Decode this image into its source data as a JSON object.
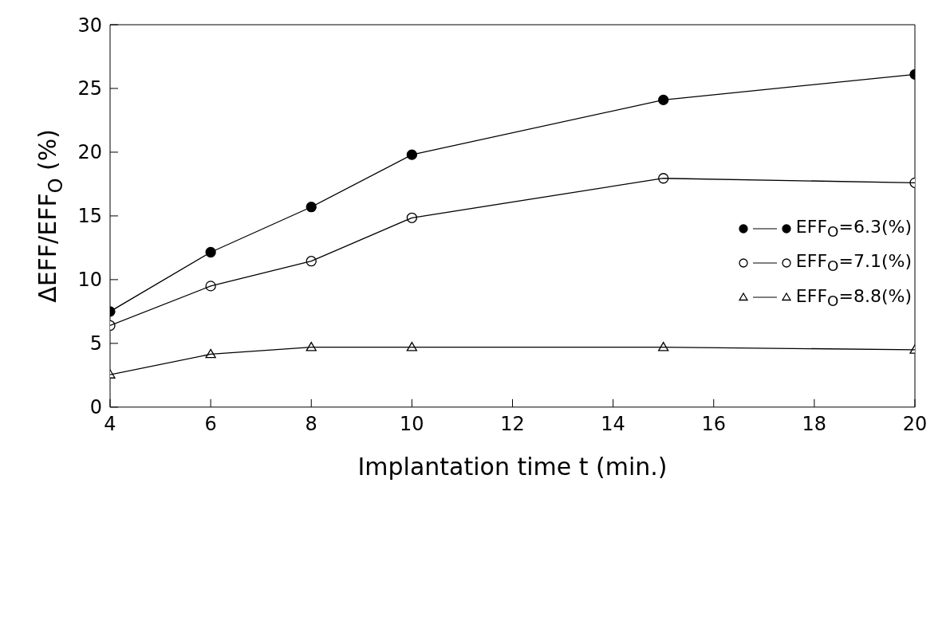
{
  "chart_data": {
    "type": "line",
    "xlabel": "Implantation time t (min.)",
    "ylabel": "ΔEFF/EFF$_{O}$ (%)",
    "x": [
      4,
      6,
      8,
      10,
      15,
      20
    ],
    "series": [
      {
        "name": "EFF$_{O}$=6.3(%)",
        "color": "#000000",
        "marker": "circle",
        "values": [
          7.5,
          12.15,
          15.7,
          19.8,
          24.1,
          26.1
        ]
      },
      {
        "name": "EFF$_{O}$=7.1(%)",
        "color": "#000000",
        "marker": "circle-open",
        "values": [
          6.4,
          9.5,
          11.45,
          14.85,
          17.95,
          17.6
        ]
      },
      {
        "name": "EFF$_{O}$=8.8(%)",
        "color": "#000000",
        "marker": "triangle",
        "values": [
          2.55,
          4.15,
          4.7,
          4.7,
          4.7,
          4.5
        ]
      }
    ],
    "xlim": [
      4,
      20
    ],
    "xticks": [
      4,
      6,
      8,
      10,
      12,
      14,
      16,
      18,
      20
    ],
    "ylim": [
      0,
      30
    ],
    "yticks": [
      0,
      5,
      10,
      15,
      20,
      25,
      30
    ],
    "grid": false,
    "legend": "right",
    "line_style": "solid"
  }
}
